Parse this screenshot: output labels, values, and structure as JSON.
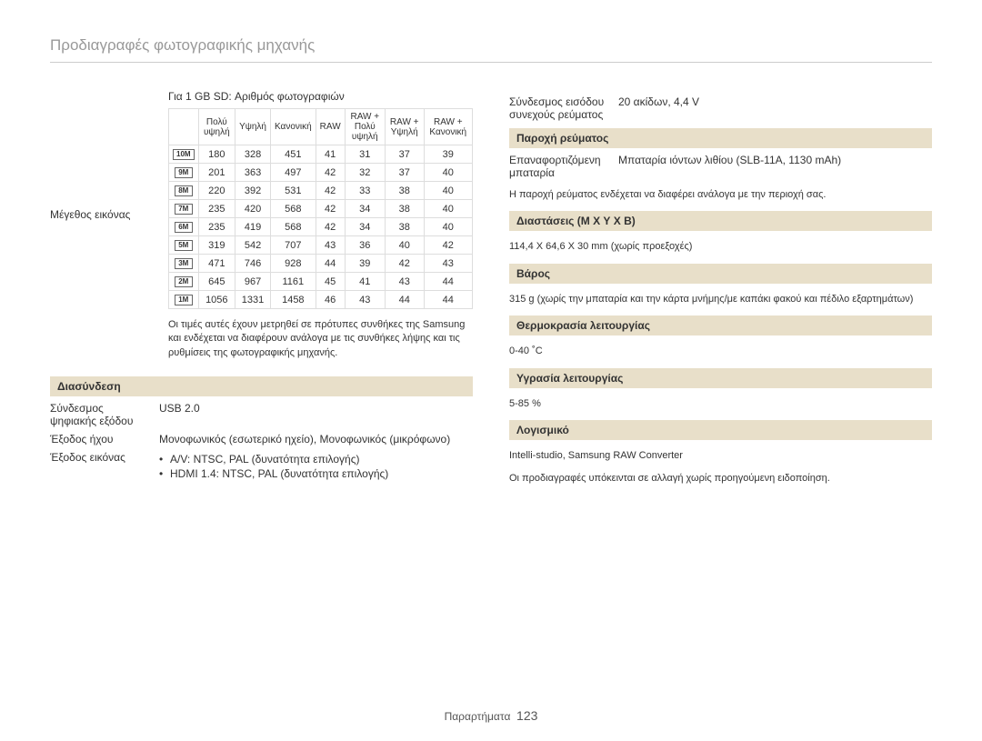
{
  "page_title": "Προδιαγραφές φωτογραφικής μηχανής",
  "left": {
    "table_caption": "Για 1 GB SD: Αριθμός φωτογραφιών",
    "image_size_label": "Μέγεθος εικόνας",
    "headers": [
      "Πολύ υψηλή",
      "Υψηλή",
      "Κανονική",
      "RAW",
      "RAW + Πολύ υψηλή",
      "RAW + Υψηλή",
      "RAW + Κανονική"
    ],
    "rows": [
      {
        "icon": "10M",
        "cells": [
          "180",
          "328",
          "451",
          "41",
          "31",
          "37",
          "39"
        ]
      },
      {
        "icon": "9M",
        "cells": [
          "201",
          "363",
          "497",
          "42",
          "32",
          "37",
          "40"
        ]
      },
      {
        "icon": "8M",
        "cells": [
          "220",
          "392",
          "531",
          "42",
          "33",
          "38",
          "40"
        ]
      },
      {
        "icon": "7M",
        "cells": [
          "235",
          "420",
          "568",
          "42",
          "34",
          "38",
          "40"
        ]
      },
      {
        "icon": "6M",
        "cells": [
          "235",
          "419",
          "568",
          "42",
          "34",
          "38",
          "40"
        ]
      },
      {
        "icon": "5M",
        "cells": [
          "319",
          "542",
          "707",
          "43",
          "36",
          "40",
          "42"
        ]
      },
      {
        "icon": "3M",
        "cells": [
          "471",
          "746",
          "928",
          "44",
          "39",
          "42",
          "43"
        ]
      },
      {
        "icon": "2M",
        "cells": [
          "645",
          "967",
          "1161",
          "45",
          "41",
          "43",
          "44"
        ]
      },
      {
        "icon": "1M",
        "cells": [
          "1056",
          "1331",
          "1458",
          "46",
          "43",
          "44",
          "44"
        ]
      }
    ],
    "table_note": "Οι τιμές αυτές έχουν μετρηθεί σε πρότυπες συνθήκες της Samsung και ενδέχεται να διαφέρουν ανάλογα με τις συνθήκες λήψης και τις ρυθμίσεις της φωτογραφικής μηχανής.",
    "interface_header": "Διασύνδεση",
    "usb_label": "Σύνδεσμος ψηφιακής εξόδου",
    "usb_value": "USB 2.0",
    "audio_label": "Έξοδος ήχου",
    "audio_value": "Μονοφωνικός (εσωτερικό ηχείο), Μονοφωνικός (μικρόφωνο)",
    "video_label": "Έξοδος εικόνας",
    "video_bullet1": "A/V: NTSC, PAL (δυνατότητα επιλογής)",
    "video_bullet2": "HDMI 1.4: NTSC, PAL (δυνατότητα επιλογής)"
  },
  "right": {
    "dc_label": "Σύνδεσμος εισόδου συνεχούς ρεύματος",
    "dc_value": "20 ακίδων, 4,4 V",
    "power_header": "Παροχή ρεύματος",
    "battery_label": "Επαναφορτιζόμενη μπαταρία",
    "battery_value": "Μπαταρία ιόντων λιθίου (SLB-11A, 1130 mAh)",
    "power_note": "Η παροχή ρεύματος ενδέχεται να διαφέρει ανάλογα με την περιοχή σας.",
    "dim_header": "Διαστάσεις (Μ X Υ X Β)",
    "dim_value": "114,4 X 64,6 X 30 mm (χωρίς προεξοχές)",
    "weight_header": "Βάρος",
    "weight_value": "315 g (χωρίς την μπαταρία και την κάρτα μνήμης/με καπάκι φακού και πέδιλο εξαρτημάτων)",
    "temp_header": "Θερμοκρασία λειτουργίας",
    "temp_value": "0-40 ˚C",
    "humid_header": "Υγρασία λειτουργίας",
    "humid_value": "5-85 %",
    "soft_header": "Λογισμικό",
    "soft_value": "Intelli-studio, Samsung RAW Converter",
    "disclaimer": "Οι προδιαγραφές υπόκεινται σε αλλαγή χωρίς προηγούμενη ειδοποίηση."
  },
  "footer": {
    "label": "Παραρτήματα",
    "page": "123"
  }
}
